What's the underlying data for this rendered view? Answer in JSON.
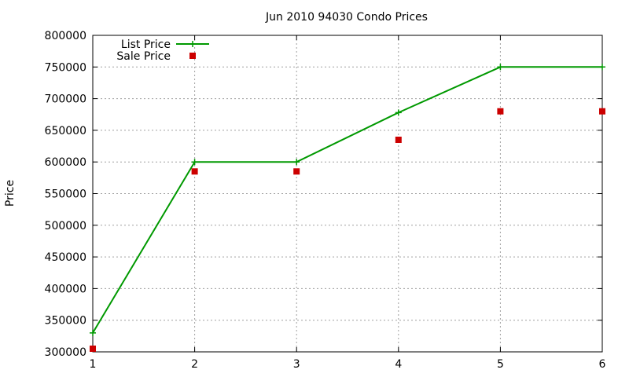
{
  "chart_data": {
    "type": "line",
    "title": "Jun 2010 94030 Condo Prices",
    "xlabel": "",
    "ylabel": "Price",
    "x": [
      1,
      2,
      3,
      4,
      5,
      6
    ],
    "xlim": [
      1,
      6
    ],
    "ylim": [
      300000,
      800000
    ],
    "xticks": [
      "1",
      "2",
      "3",
      "4",
      "5",
      "6"
    ],
    "yticks": [
      "300000",
      "350000",
      "400000",
      "450000",
      "500000",
      "550000",
      "600000",
      "650000",
      "700000",
      "750000",
      "800000"
    ],
    "grid": true,
    "legend_position": "top-left",
    "series": [
      {
        "name": "List Price",
        "style": "line-with-plus-markers",
        "color": "#009900",
        "values": [
          330000,
          600000,
          600000,
          678000,
          750000,
          750000
        ]
      },
      {
        "name": "Sale Price",
        "style": "square-markers",
        "color": "#cc0000",
        "values": [
          305000,
          585000,
          585000,
          635000,
          680000,
          680000
        ]
      }
    ]
  }
}
